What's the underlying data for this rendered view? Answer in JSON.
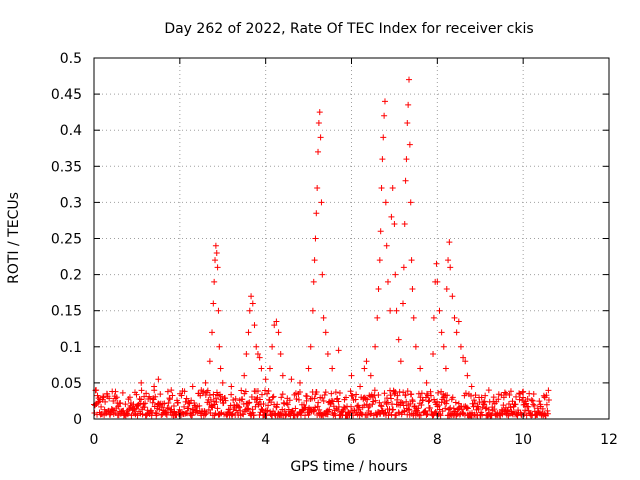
{
  "chart_data": {
    "type": "scatter",
    "title": "Day 262 of 2022, Rate Of TEC Index for receiver ckis",
    "xlabel": "GPS time / hours",
    "ylabel": "ROTI / TECUs",
    "xlim": [
      0,
      12
    ],
    "ylim": [
      0,
      0.5
    ],
    "xticks": [
      "0",
      "2",
      "4",
      "6",
      "8",
      "10",
      "12"
    ],
    "yticks": [
      "0",
      "0.05",
      "0.1",
      "0.15",
      "0.2",
      "0.25",
      "0.3",
      "0.35",
      "0.4",
      "0.45",
      "0.5"
    ],
    "grid": true,
    "marker": "+",
    "color": "#ff0000",
    "baseline": {
      "x_start": 0.0,
      "x_end": 10.6,
      "typical_y_range": [
        0.005,
        0.04
      ]
    },
    "series": [
      {
        "points": [
          [
            0.05,
            0.04
          ],
          [
            0.3,
            0.035
          ],
          [
            0.5,
            0.038
          ],
          [
            1.1,
            0.05
          ],
          [
            1.4,
            0.045
          ],
          [
            1.5,
            0.055
          ],
          [
            1.8,
            0.04
          ],
          [
            2.3,
            0.045
          ],
          [
            2.5,
            0.04
          ],
          [
            2.6,
            0.05
          ],
          [
            2.7,
            0.08
          ],
          [
            2.75,
            0.12
          ],
          [
            2.78,
            0.16
          ],
          [
            2.8,
            0.19
          ],
          [
            2.82,
            0.22
          ],
          [
            2.84,
            0.24
          ],
          [
            2.86,
            0.23
          ],
          [
            2.88,
            0.21
          ],
          [
            2.9,
            0.15
          ],
          [
            2.92,
            0.1
          ],
          [
            2.95,
            0.07
          ],
          [
            3.0,
            0.05
          ],
          [
            3.2,
            0.045
          ],
          [
            3.5,
            0.06
          ],
          [
            3.55,
            0.09
          ],
          [
            3.6,
            0.12
          ],
          [
            3.63,
            0.15
          ],
          [
            3.66,
            0.17
          ],
          [
            3.7,
            0.16
          ],
          [
            3.74,
            0.13
          ],
          [
            3.78,
            0.1
          ],
          [
            3.82,
            0.09
          ],
          [
            3.86,
            0.085
          ],
          [
            3.9,
            0.07
          ],
          [
            4.0,
            0.055
          ],
          [
            4.1,
            0.07
          ],
          [
            4.15,
            0.1
          ],
          [
            4.2,
            0.13
          ],
          [
            4.25,
            0.135
          ],
          [
            4.3,
            0.12
          ],
          [
            4.35,
            0.09
          ],
          [
            4.4,
            0.06
          ],
          [
            4.6,
            0.055
          ],
          [
            4.8,
            0.05
          ],
          [
            5.0,
            0.07
          ],
          [
            5.05,
            0.1
          ],
          [
            5.1,
            0.15
          ],
          [
            5.12,
            0.19
          ],
          [
            5.14,
            0.22
          ],
          [
            5.16,
            0.25
          ],
          [
            5.18,
            0.285
          ],
          [
            5.2,
            0.32
          ],
          [
            5.22,
            0.37
          ],
          [
            5.24,
            0.41
          ],
          [
            5.26,
            0.425
          ],
          [
            5.28,
            0.39
          ],
          [
            5.3,
            0.3
          ],
          [
            5.32,
            0.2
          ],
          [
            5.35,
            0.14
          ],
          [
            5.4,
            0.12
          ],
          [
            5.45,
            0.09
          ],
          [
            5.55,
            0.07
          ],
          [
            5.7,
            0.095
          ],
          [
            6.0,
            0.06
          ],
          [
            6.2,
            0.045
          ],
          [
            6.3,
            0.07
          ],
          [
            6.35,
            0.08
          ],
          [
            6.45,
            0.06
          ],
          [
            6.55,
            0.1
          ],
          [
            6.6,
            0.14
          ],
          [
            6.63,
            0.18
          ],
          [
            6.66,
            0.22
          ],
          [
            6.68,
            0.26
          ],
          [
            6.7,
            0.32
          ],
          [
            6.72,
            0.36
          ],
          [
            6.74,
            0.39
          ],
          [
            6.76,
            0.42
          ],
          [
            6.78,
            0.44
          ],
          [
            6.8,
            0.3
          ],
          [
            6.82,
            0.24
          ],
          [
            6.85,
            0.19
          ],
          [
            6.9,
            0.15
          ],
          [
            6.93,
            0.28
          ],
          [
            6.96,
            0.32
          ],
          [
            7.0,
            0.27
          ],
          [
            7.02,
            0.2
          ],
          [
            7.05,
            0.15
          ],
          [
            7.1,
            0.11
          ],
          [
            7.15,
            0.08
          ],
          [
            7.2,
            0.16
          ],
          [
            7.22,
            0.21
          ],
          [
            7.24,
            0.27
          ],
          [
            7.26,
            0.33
          ],
          [
            7.28,
            0.36
          ],
          [
            7.3,
            0.41
          ],
          [
            7.32,
            0.435
          ],
          [
            7.34,
            0.47
          ],
          [
            7.36,
            0.38
          ],
          [
            7.38,
            0.3
          ],
          [
            7.4,
            0.22
          ],
          [
            7.42,
            0.18
          ],
          [
            7.45,
            0.14
          ],
          [
            7.5,
            0.1
          ],
          [
            7.6,
            0.07
          ],
          [
            7.75,
            0.05
          ],
          [
            7.9,
            0.09
          ],
          [
            7.92,
            0.14
          ],
          [
            7.95,
            0.19
          ],
          [
            7.98,
            0.215
          ],
          [
            8.0,
            0.19
          ],
          [
            8.05,
            0.15
          ],
          [
            8.1,
            0.12
          ],
          [
            8.15,
            0.1
          ],
          [
            8.2,
            0.07
          ],
          [
            8.22,
            0.18
          ],
          [
            8.25,
            0.22
          ],
          [
            8.28,
            0.245
          ],
          [
            8.3,
            0.21
          ],
          [
            8.35,
            0.17
          ],
          [
            8.4,
            0.14
          ],
          [
            8.45,
            0.12
          ],
          [
            8.5,
            0.135
          ],
          [
            8.55,
            0.1
          ],
          [
            8.6,
            0.085
          ],
          [
            8.65,
            0.08
          ],
          [
            8.7,
            0.06
          ],
          [
            8.8,
            0.045
          ],
          [
            9.2,
            0.04
          ],
          [
            9.6,
            0.035
          ],
          [
            10.0,
            0.038
          ],
          [
            10.5,
            0.03
          ]
        ]
      }
    ]
  }
}
